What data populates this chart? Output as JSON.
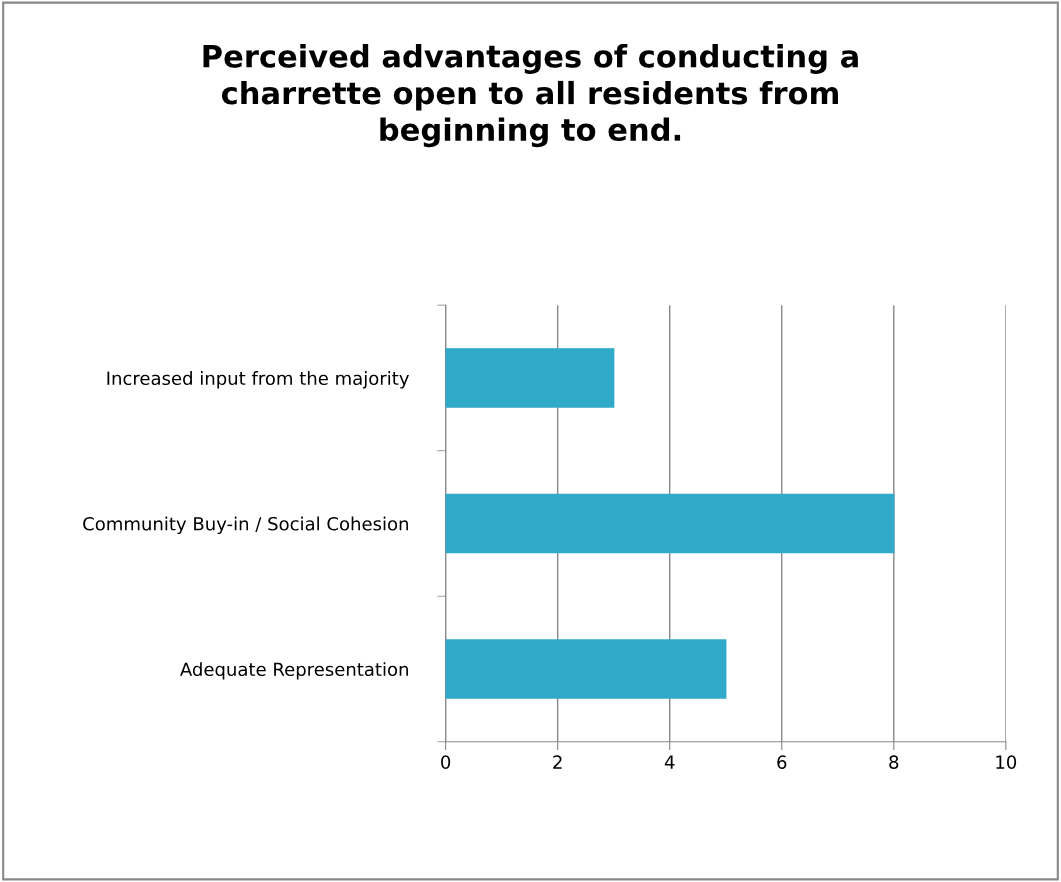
{
  "chart_data": {
    "type": "bar",
    "orientation": "horizontal",
    "title": "Perceived advantages of conducting a\ncharrette open to all residents from\nbeginning to end.",
    "categories": [
      "Increased input from the majority",
      "Community Buy-in / Social Cohesion",
      "Adequate Representation"
    ],
    "values": [
      3,
      8,
      5
    ],
    "color": "#31a9c9",
    "xlim": [
      0,
      10
    ],
    "xticks": [
      0,
      2,
      4,
      6,
      8,
      10
    ],
    "grid": "x",
    "legend": false
  }
}
